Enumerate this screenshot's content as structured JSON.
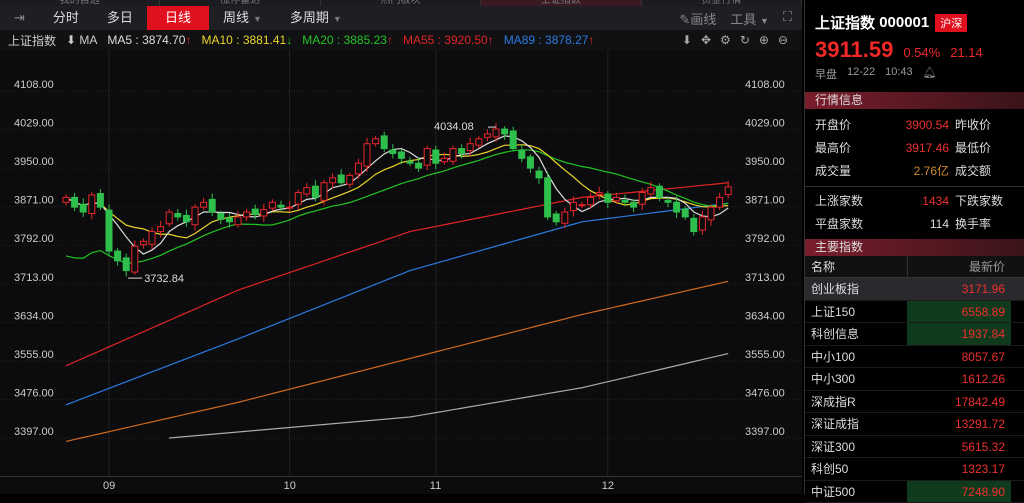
{
  "top_tabs": [
    "我的自选",
    "涨停雷达",
    "热门板块",
    "上证指数",
    "资金行情"
  ],
  "toolbar": {
    "items": [
      "分时",
      "多日",
      "日线",
      "周线",
      "多周期"
    ],
    "active": "日线",
    "draw": "画线",
    "tools": "工具"
  },
  "ma_row": {
    "name": "上证指数",
    "ma_label": "MA",
    "ma": [
      {
        "text": "MA5 : 3874.70",
        "arrow": "↑",
        "color": "#dddddd"
      },
      {
        "text": "MA10 : 3881.41",
        "arrow": "↓",
        "color": "#e8d62a"
      },
      {
        "text": "MA20 : 3885.23",
        "arrow": "↑",
        "color": "#22c422"
      },
      {
        "text": "MA55 : 3920.50",
        "arrow": "↑",
        "color": "#e02424"
      },
      {
        "text": "MA89 : 3878.27",
        "arrow": "↑",
        "color": "#2a7ae0"
      }
    ]
  },
  "colors": {
    "up": "#e8262b",
    "down": "#2fbf4c",
    "ma5": "#dddddd",
    "ma10": "#e8d62a",
    "ma20": "#22c422",
    "ma55": "#e02424",
    "ma89": "#2a7ae0",
    "line6": "#d2691e",
    "line7": "#aaaaaa"
  },
  "chart_data": {
    "type": "candlestick",
    "y_ticks": [
      "4108.00",
      "4029.00",
      "3950.00",
      "3871.00",
      "3792.00",
      "3713.00",
      "3634.00",
      "3555.00",
      "3476.00",
      "3397.00"
    ],
    "ylim": [
      3397,
      4108
    ],
    "x_ticks": [
      {
        "label": "09",
        "index": 5
      },
      {
        "label": "10",
        "index": 26
      },
      {
        "label": "11",
        "index": 43
      },
      {
        "label": "12",
        "index": 63
      }
    ],
    "annotations": [
      {
        "text": "4034.08",
        "index": 50,
        "value": 4034.08
      },
      {
        "text": "3732.84",
        "index": 7,
        "value": 3732.84
      }
    ],
    "close": [
      3890,
      3870,
      3860,
      3895,
      3870,
      3780,
      3760,
      3740,
      3790,
      3800,
      3820,
      3830,
      3860,
      3850,
      3840,
      3870,
      3880,
      3860,
      3845,
      3840,
      3850,
      3860,
      3855,
      3865,
      3880,
      3870,
      3870,
      3900,
      3910,
      3890,
      3920,
      3930,
      3920,
      3935,
      3960,
      4000,
      4010,
      3990,
      3980,
      3970,
      3960,
      3950,
      3990,
      3960,
      3970,
      3990,
      3980,
      4000,
      4010,
      4020,
      4030,
      4020,
      3990,
      3970,
      3950,
      3930,
      3850,
      3840,
      3860,
      3880,
      3875,
      3890,
      3900,
      3880,
      3890,
      3880,
      3870,
      3900,
      3910,
      3890,
      3880,
      3860,
      3850,
      3820,
      3850,
      3870,
      3890,
      3911.59
    ],
    "ma_series": [
      {
        "name": "MA55",
        "key": "ma55",
        "points": [
          [
            0,
            3545
          ],
          [
            20,
            3700
          ],
          [
            40,
            3820
          ],
          [
            60,
            3890
          ],
          [
            77,
            3920
          ]
        ]
      },
      {
        "name": "MA89",
        "key": "ma89",
        "points": [
          [
            0,
            3465
          ],
          [
            20,
            3600
          ],
          [
            40,
            3740
          ],
          [
            60,
            3840
          ],
          [
            77,
            3878
          ]
        ]
      },
      {
        "key": "line6",
        "points": [
          [
            0,
            3390
          ],
          [
            20,
            3470
          ],
          [
            40,
            3560
          ],
          [
            60,
            3650
          ],
          [
            77,
            3718
          ]
        ]
      },
      {
        "key": "line7",
        "points": [
          [
            12,
            3397
          ],
          [
            40,
            3440
          ],
          [
            60,
            3500
          ],
          [
            77,
            3570
          ]
        ]
      }
    ]
  },
  "quote": {
    "name": "上证指数",
    "code": "000001",
    "badge": "沪深",
    "price": "3911.59",
    "pct": "0.54%",
    "chg": "21.14",
    "session": "早盘",
    "date": "12-22",
    "time": "10:43"
  },
  "info_title": "行情信息",
  "info": [
    {
      "label": "开盘价",
      "value": "3900.54",
      "color": "#f03030",
      "label2": "昨收价"
    },
    {
      "label": "最高价",
      "value": "3917.46",
      "color": "#f03030",
      "label2": "最低价"
    },
    {
      "label": "成交量",
      "value": "2.76亿",
      "color": "#d08a30",
      "label2": "成交额"
    }
  ],
  "info2": [
    {
      "label": "上涨家数",
      "value": "1434",
      "color": "#f03030",
      "label2": "下跌家数"
    },
    {
      "label": "平盘家数",
      "value": "114",
      "color": "#dddddd",
      "label2": "换手率"
    }
  ],
  "index_title": "主要指数",
  "index_head": {
    "name": "名称",
    "price": "最新价"
  },
  "indices": [
    {
      "name": "创业板指",
      "price": "3171.96",
      "hl": false,
      "sel": true
    },
    {
      "name": "上证150",
      "price": "6558.89",
      "hl": true
    },
    {
      "name": "科创信息",
      "price": "1937.84",
      "hl": true
    },
    {
      "name": "中小100",
      "price": "8057.67",
      "hl": false
    },
    {
      "name": "中小300",
      "price": "1612.26",
      "hl": false
    },
    {
      "name": "深成指R",
      "price": "17842.49",
      "hl": false
    },
    {
      "name": "深证成指",
      "price": "13291.72",
      "hl": false
    },
    {
      "name": "深证300",
      "price": "5615.32",
      "hl": false
    },
    {
      "name": "科创50",
      "price": "1323.17",
      "hl": false
    },
    {
      "name": "中证500",
      "price": "7248.90",
      "hl": true
    }
  ]
}
